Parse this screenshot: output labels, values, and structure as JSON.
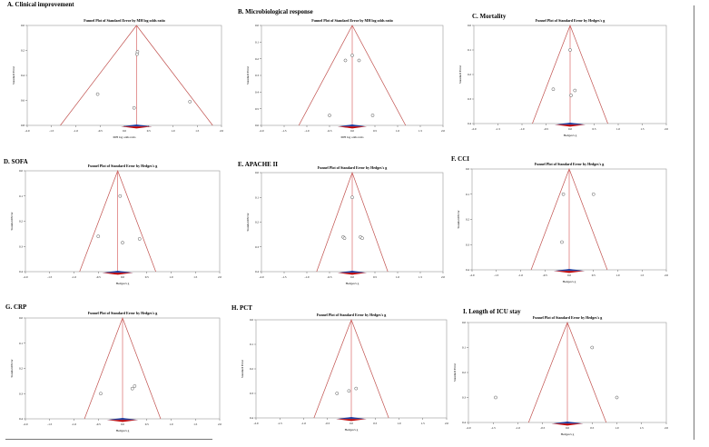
{
  "colors": {
    "funnel": "#c0504d",
    "diamond_top": "#1f3fa0",
    "diamond_bottom": "#c00000",
    "center_line": "#d96a6a",
    "points": "#555555"
  },
  "chart_data": [
    {
      "label": "A. Clinical improvement",
      "type": "scatter",
      "title": "Funnel Plot of Standard Error by MH log odds ratio",
      "xlabel": "MH log odds ratio",
      "ylabel": "Standard Error",
      "xlim": [
        -2.0,
        2.0
      ],
      "ylim": [
        0.0,
        0.8
      ],
      "xticks": [
        "-2.0",
        "-1.5",
        "-1.0",
        "-0.5",
        "0.0",
        "0.5",
        "1.0",
        "1.5",
        "2.0"
      ],
      "yticks": [
        "0.0",
        "0.2",
        "0.4",
        "0.6",
        "0.8"
      ],
      "center": 0.25,
      "points": [
        [
          0.27,
          0.21
        ],
        [
          0.26,
          0.23
        ],
        [
          -0.55,
          0.55
        ],
        [
          0.2,
          0.66
        ],
        [
          1.35,
          0.61
        ]
      ]
    },
    {
      "label": "B. Microbiological response",
      "type": "scatter",
      "title": "Funnel Plot of Standard Error by MH log odds ratio",
      "xlabel": "MH log odds ratio",
      "ylabel": "Standard Error",
      "xlim": [
        -2.0,
        2.0
      ],
      "ylim": [
        0.0,
        0.6
      ],
      "xticks": [
        "-2.0",
        "-1.5",
        "-1.0",
        "-0.5",
        "0.0",
        "0.5",
        "1.0",
        "1.5",
        "2.0"
      ],
      "yticks": [
        "0.0",
        "0.1",
        "0.2",
        "0.3",
        "0.4",
        "0.5",
        "0.6"
      ],
      "center": 0.0,
      "points": [
        [
          0.0,
          0.18
        ],
        [
          -0.15,
          0.21
        ],
        [
          0.15,
          0.21
        ],
        [
          -0.5,
          0.54
        ],
        [
          0.45,
          0.54
        ]
      ]
    },
    {
      "label": "C. Mortality",
      "type": "scatter",
      "title": "Funnel Plot of Standard Error by Hedges's g",
      "xlabel": "Hedges's g",
      "ylabel": "Standard Error",
      "xlim": [
        -2.0,
        2.0
      ],
      "ylim": [
        0.0,
        0.4
      ],
      "xticks": [
        "-2.0",
        "-1.5",
        "-1.0",
        "-0.5",
        "0.0",
        "0.5",
        "1.0",
        "1.5",
        "2.0"
      ],
      "yticks": [
        "0.0",
        "0.1",
        "0.2",
        "0.3",
        "0.4"
      ],
      "center": 0.0,
      "points": [
        [
          0.0,
          0.1
        ],
        [
          -0.35,
          0.26
        ],
        [
          0.1,
          0.265
        ],
        [
          0.02,
          0.285
        ]
      ]
    },
    {
      "label": "D. SOFA",
      "type": "scatter",
      "title": "Funnel Plot of Standard Error by Hedges's g",
      "xlabel": "Hedges's g",
      "ylabel": "Standard Error",
      "xlim": [
        -2.0,
        2.0
      ],
      "ylim": [
        0.0,
        0.4
      ],
      "xticks": [
        "-2.0",
        "-1.5",
        "-1.0",
        "-0.5",
        "0.0",
        "0.5",
        "1.0",
        "1.5",
        "2.0"
      ],
      "yticks": [
        "0.0",
        "0.1",
        "0.2",
        "0.3",
        "0.4"
      ],
      "center": -0.1,
      "points": [
        [
          -0.05,
          0.1
        ],
        [
          -0.5,
          0.26
        ],
        [
          0.0,
          0.285
        ],
        [
          0.35,
          0.27
        ]
      ]
    },
    {
      "label": "E. APACHE II",
      "type": "scatter",
      "title": "Funnel Plot of Standard Error by Hedges's g",
      "xlabel": "Hedges's g",
      "ylabel": "Standard Error",
      "xlim": [
        -2.0,
        2.0
      ],
      "ylim": [
        0.0,
        0.4
      ],
      "xticks": [
        "-2.0",
        "-1.5",
        "-1.0",
        "-0.5",
        "0.0",
        "0.5",
        "1.0",
        "1.5",
        "2.0"
      ],
      "yticks": [
        "0.0",
        "0.1",
        "0.2",
        "0.3",
        "0.4"
      ],
      "center": 0.0,
      "points": [
        [
          0.0,
          0.1
        ],
        [
          -0.2,
          0.26
        ],
        [
          -0.17,
          0.265
        ],
        [
          0.18,
          0.26
        ],
        [
          0.22,
          0.265
        ]
      ]
    },
    {
      "label": "F. CCI",
      "type": "scatter",
      "title": "Funnel Plot of Standard Error by Hedges's g",
      "xlabel": "Hedges's g",
      "ylabel": "Standard Error",
      "xlim": [
        -2.0,
        2.0
      ],
      "ylim": [
        0.0,
        0.4
      ],
      "xticks": [
        "-2.0",
        "-1.5",
        "-1.0",
        "-0.5",
        "0.0",
        "0.5",
        "1.0",
        "1.5",
        "2.0"
      ],
      "yticks": [
        "0.0",
        "0.1",
        "0.2",
        "0.3",
        "0.4"
      ],
      "center": 0.0,
      "points": [
        [
          -0.12,
          0.1
        ],
        [
          0.5,
          0.1
        ],
        [
          -0.15,
          0.29
        ]
      ]
    },
    {
      "label": "G. CRP",
      "type": "scatter",
      "title": "Funnel Plot of Standard Error by Hedges's g",
      "xlabel": "Hedges's g",
      "ylabel": "Standard Error",
      "xlim": [
        -2.0,
        2.0
      ],
      "ylim": [
        0.0,
        0.4
      ],
      "xticks": [
        "-2.0",
        "-1.5",
        "-1.0",
        "-0.5",
        "0.0",
        "0.5",
        "1.0",
        "1.5",
        "2.0"
      ],
      "yticks": [
        "0.0",
        "0.1",
        "0.2",
        "0.3",
        "0.4"
      ],
      "center": 0.0,
      "points": [
        [
          -0.45,
          0.3
        ],
        [
          0.2,
          0.28
        ],
        [
          0.25,
          0.27
        ]
      ]
    },
    {
      "label": "H. PCT",
      "type": "scatter",
      "title": "Funnel Plot of Standard Error by Hedges's g",
      "xlabel": "Hedges's g",
      "ylabel": "Standard Error",
      "xlim": [
        -2.0,
        2.0
      ],
      "ylim": [
        0.0,
        0.4
      ],
      "xticks": [
        "-2.0",
        "-1.5",
        "-1.0",
        "-0.5",
        "0.0",
        "0.5",
        "1.0",
        "1.5",
        "2.0"
      ],
      "yticks": [
        "0.0",
        "0.1",
        "0.2",
        "0.3",
        "0.4"
      ],
      "center": 0.0,
      "points": [
        [
          -0.3,
          0.3
        ],
        [
          0.1,
          0.28
        ],
        [
          -0.05,
          0.29
        ]
      ]
    },
    {
      "label": "I. Length of ICU stay",
      "type": "scatter",
      "title": "Funnel Plot of Standard Error by Hedges's g",
      "xlabel": "Hedges's g",
      "ylabel": "Standard Error",
      "xlim": [
        -2.0,
        2.0
      ],
      "ylim": [
        0.0,
        0.4
      ],
      "xticks": [
        "-2.0",
        "-1.5",
        "-1.0",
        "-0.5",
        "0.0",
        "0.5",
        "1.0",
        "1.5",
        "2.0"
      ],
      "yticks": [
        "0.0",
        "0.1",
        "0.2",
        "0.3",
        "0.4"
      ],
      "center": 0.0,
      "points": [
        [
          -1.45,
          0.3
        ],
        [
          0.5,
          0.1
        ],
        [
          1.0,
          0.3
        ]
      ]
    }
  ]
}
